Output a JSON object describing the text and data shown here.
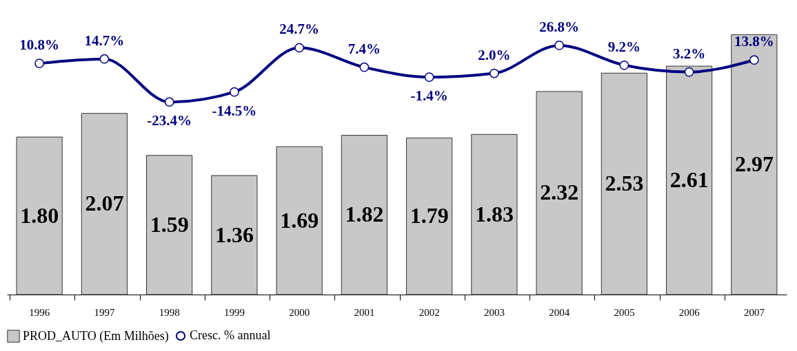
{
  "chart_data": {
    "type": "bar",
    "categories": [
      "1996",
      "1997",
      "1998",
      "1999",
      "2000",
      "2001",
      "2002",
      "2003",
      "2004",
      "2005",
      "2006",
      "2007"
    ],
    "series": [
      {
        "name": "PROD_AUTO (Em Milhões)",
        "color": "#c8c8c8",
        "values": [
          1.8,
          2.07,
          1.59,
          1.36,
          1.69,
          1.82,
          1.79,
          1.83,
          2.32,
          2.53,
          2.61,
          2.97
        ],
        "value_labels": [
          "1.80",
          "2.07",
          "1.59",
          "1.36",
          "1.69",
          "1.82",
          "1.79",
          "1.83",
          "2.32",
          "2.53",
          "2.61",
          "2.97"
        ]
      },
      {
        "name": "Cresc. % annual",
        "type": "line",
        "axis": "y2",
        "color": "#000080",
        "values": [
          10.8,
          14.7,
          -23.4,
          -14.5,
          24.7,
          7.4,
          -1.4,
          2.0,
          26.8,
          9.2,
          3.2,
          13.8
        ],
        "value_labels": [
          "10.8%",
          "14.7%",
          "-23.4%",
          "-14.5%",
          "24.7%",
          "7.4%",
          "-1.4%",
          "2.0%",
          "26.8%",
          "9.2%",
          "3.2%",
          "13.8%"
        ]
      }
    ],
    "tick_labels": "x",
    "legend": "bottom",
    "marker": "circle",
    "grid": false
  }
}
